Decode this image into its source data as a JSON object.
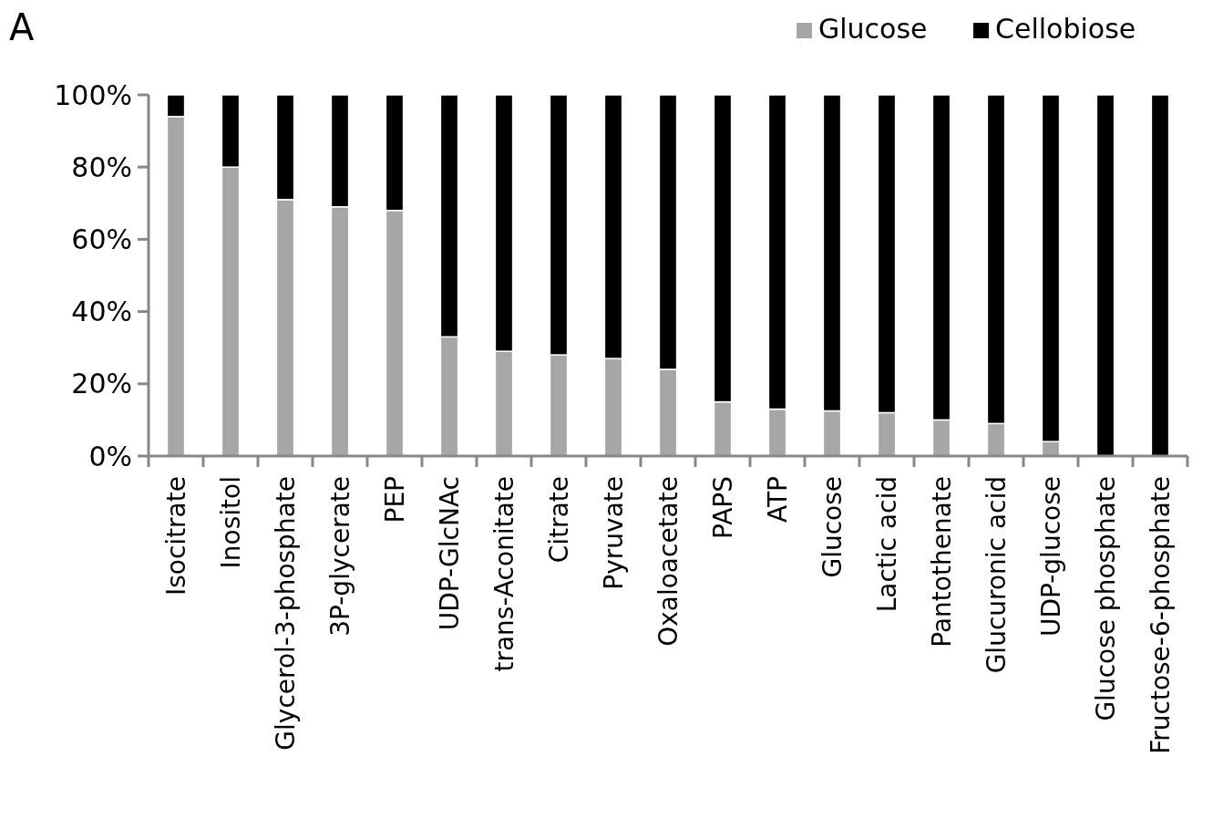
{
  "chart_data": {
    "type": "bar",
    "stacked": true,
    "categories": [
      "Isocitrate",
      "Inositol",
      "Glycerol-3-phosphate",
      "3P-glycerate",
      "PEP",
      "UDP-GlcNAc",
      "trans-Aconitate",
      "Citrate",
      "Pyruvate",
      "Oxaloacetate",
      "PAPS",
      "ATP",
      "Glucose",
      "Lactic acid",
      "Pantothenate",
      "Glucuronic acid",
      "UDP-glucose",
      "Glucose phosphate",
      "Fructose-6-phosphate"
    ],
    "series": [
      {
        "name": "Glucose",
        "color": "#a6a6a6",
        "values": [
          94,
          80,
          71,
          69,
          68,
          33,
          29,
          28,
          27,
          24,
          15,
          13,
          12.5,
          12,
          10,
          9,
          4,
          null,
          null
        ]
      },
      {
        "name": "Cellobiose",
        "color": "#000000",
        "values": [
          6,
          20,
          29,
          31,
          32,
          67,
          71,
          72,
          73,
          76,
          85,
          87,
          87.5,
          88,
          90,
          91,
          96,
          100,
          100
        ]
      }
    ],
    "ylim": [
      0,
      100
    ],
    "yticks": [
      {
        "value": 0,
        "label": "0%"
      },
      {
        "value": 20,
        "label": "20%"
      },
      {
        "value": 40,
        "label": "40%"
      },
      {
        "value": 60,
        "label": "60%"
      },
      {
        "value": 80,
        "label": "80%"
      },
      {
        "value": 100,
        "label": "100%"
      }
    ],
    "grid": false,
    "legend": "top right",
    "annotations": [
      "A"
    ]
  }
}
